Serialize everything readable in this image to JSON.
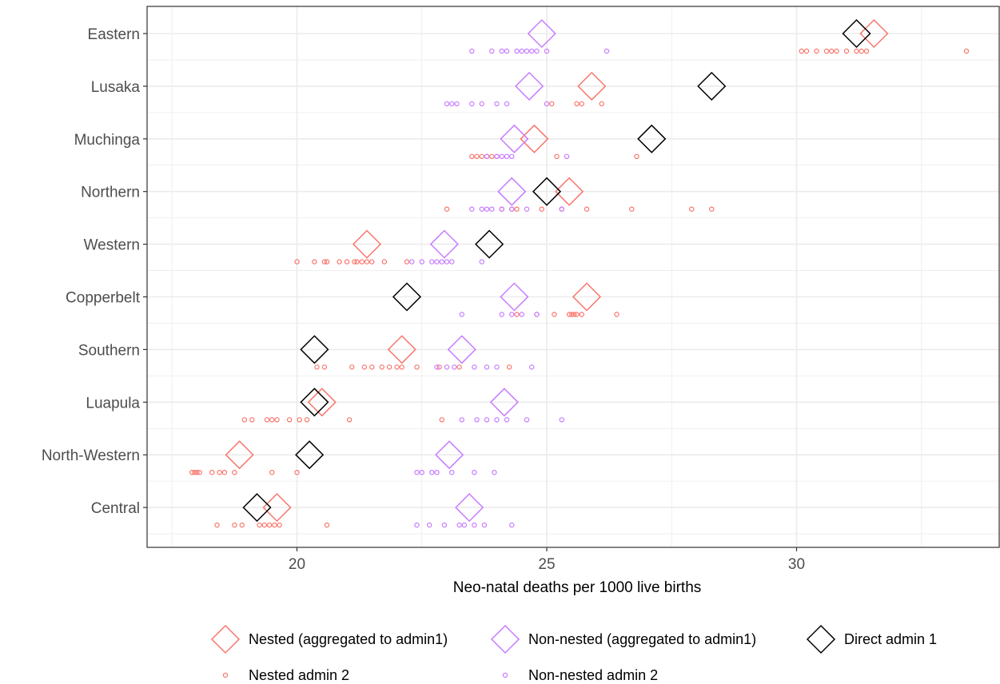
{
  "chart_data": {
    "type": "scatter",
    "title": "",
    "xlabel": "Neo-natal deaths per 1000 live births",
    "ylabel": "",
    "xlim": [
      17.3,
      34.0
    ],
    "xticks": [
      20,
      25,
      30
    ],
    "grid": true,
    "legend_position": "bottom",
    "colors": {
      "nested": "#F8766D",
      "nonnested": "#C77CFF",
      "direct": "#000000"
    },
    "categories": [
      "Eastern",
      "Lusaka",
      "Muchinga",
      "Northern",
      "Western",
      "Copperbelt",
      "Southern",
      "Luapula",
      "North-Western",
      "Central"
    ],
    "legend": [
      {
        "key": "nested_agg",
        "label": "Nested (aggregated to admin1)",
        "shape": "diamond",
        "color": "#F8766D"
      },
      {
        "key": "nonnested_agg",
        "label": "Non-nested (aggregated to admin1)",
        "shape": "diamond",
        "color": "#C77CFF"
      },
      {
        "key": "direct",
        "label": "Direct admin 1",
        "shape": "diamond",
        "color": "#000000"
      },
      {
        "key": "nested_a2",
        "label": "Nested admin 2",
        "shape": "circle",
        "color": "#F8766D"
      },
      {
        "key": "nonnested_a2",
        "label": "Non-nested admin 2",
        "shape": "circle",
        "color": "#C77CFF"
      }
    ],
    "series": [
      {
        "key": "nested_agg",
        "values": [
          31.55,
          25.9,
          24.75,
          25.45,
          21.4,
          25.8,
          22.1,
          20.5,
          18.85,
          19.6
        ]
      },
      {
        "key": "nonnested_agg",
        "values": [
          24.9,
          24.65,
          24.35,
          24.3,
          22.95,
          24.35,
          23.3,
          24.15,
          23.05,
          23.45
        ]
      },
      {
        "key": "direct",
        "values": [
          31.2,
          28.3,
          27.1,
          25.0,
          23.85,
          22.2,
          20.35,
          20.35,
          20.25,
          19.2
        ]
      },
      {
        "key": "nested_a2",
        "values": [
          [
            30.1,
            30.2,
            30.4,
            30.6,
            30.7,
            30.8,
            31.0,
            31.2,
            31.3,
            31.4,
            33.4
          ],
          [
            25.1,
            25.6,
            25.7,
            26.1
          ],
          [
            23.5,
            23.6,
            23.7,
            23.8,
            23.9,
            24.0,
            25.2,
            26.8
          ],
          [
            23.0,
            24.1,
            24.3,
            24.4,
            24.9,
            25.3,
            25.8,
            26.7,
            27.9,
            28.3
          ],
          [
            20.0,
            20.35,
            20.55,
            20.6,
            20.85,
            21.0,
            21.15,
            21.2,
            21.3,
            21.4,
            21.5,
            21.75,
            22.2
          ],
          [
            24.4,
            24.8,
            25.15,
            25.45,
            25.5,
            25.55,
            25.6,
            25.7,
            26.4
          ],
          [
            20.4,
            20.55,
            21.1,
            21.35,
            21.5,
            21.7,
            21.85,
            22.0,
            22.1,
            22.4,
            22.85,
            23.25,
            24.25
          ],
          [
            18.95,
            19.1,
            19.4,
            19.5,
            19.6,
            19.85,
            20.05,
            20.2,
            21.05,
            22.9
          ],
          [
            17.9,
            17.95,
            18.0,
            18.05,
            18.3,
            18.45,
            18.55,
            18.75,
            19.5,
            20.0
          ],
          [
            18.4,
            18.75,
            18.9,
            19.25,
            19.35,
            19.45,
            19.55,
            19.65,
            20.6
          ]
        ]
      },
      {
        "key": "nonnested_a2",
        "values": [
          [
            23.5,
            23.9,
            24.1,
            24.2,
            24.4,
            24.5,
            24.6,
            24.7,
            24.8,
            25.0,
            26.2
          ],
          [
            23.0,
            23.1,
            23.2,
            23.5,
            23.7,
            24.0,
            24.2,
            25.0
          ],
          [
            23.8,
            24.0,
            24.1,
            24.2,
            24.3,
            25.4
          ],
          [
            23.5,
            23.7,
            23.8,
            23.9,
            24.1,
            24.3,
            24.6,
            25.3
          ],
          [
            22.3,
            22.5,
            22.7,
            22.8,
            22.9,
            23.0,
            23.1,
            23.7
          ],
          [
            23.3,
            24.1,
            24.3,
            24.5,
            24.8
          ],
          [
            22.8,
            23.0,
            23.15,
            23.55,
            23.8,
            24.0,
            24.7
          ],
          [
            23.3,
            23.6,
            23.8,
            24.0,
            24.2,
            24.6,
            25.3
          ],
          [
            22.4,
            22.5,
            22.7,
            22.8,
            23.1,
            23.55,
            23.95
          ],
          [
            22.4,
            22.65,
            22.95,
            23.25,
            23.35,
            23.55,
            23.75,
            24.3
          ]
        ]
      }
    ]
  }
}
